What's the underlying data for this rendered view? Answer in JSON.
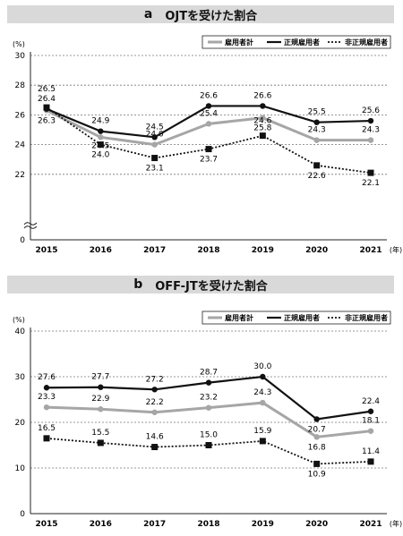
{
  "chart_data": [
    {
      "type": "line",
      "panel_letter": "a",
      "title": "OJTを受けた割合",
      "ylabel": "(%)",
      "xunit": "(年)",
      "ylim": [
        20,
        30
      ],
      "yaxis_break": true,
      "yticks": [
        "0",
        "22",
        "24",
        "26",
        "28",
        "30"
      ],
      "categories": [
        "2015",
        "2016",
        "2017",
        "2018",
        "2019",
        "2020",
        "2021"
      ],
      "legend": "top-right",
      "grid": "horizontal dotted",
      "series": [
        {
          "name": "雇用者計",
          "style": "gray",
          "values": [
            26.3,
            24.5,
            24.0,
            25.4,
            25.8,
            24.3,
            24.3
          ]
        },
        {
          "name": "正規雇用者",
          "style": "black",
          "values": [
            26.4,
            24.9,
            24.5,
            26.6,
            26.6,
            25.5,
            25.6
          ]
        },
        {
          "name": "非正規雇用者",
          "style": "dotted",
          "values": [
            26.5,
            24.0,
            23.1,
            23.7,
            24.6,
            22.6,
            22.1
          ]
        }
      ]
    },
    {
      "type": "line",
      "panel_letter": "b",
      "title": "OFF-JTを受けた割合",
      "ylabel": "(%)",
      "xunit": "(年)",
      "ylim": [
        0,
        40
      ],
      "yaxis_break": false,
      "yticks": [
        "0",
        "10",
        "20",
        "30",
        "40"
      ],
      "categories": [
        "2015",
        "2016",
        "2017",
        "2018",
        "2019",
        "2020",
        "2021"
      ],
      "legend": "top-right",
      "grid": "horizontal dotted",
      "series": [
        {
          "name": "雇用者計",
          "style": "gray",
          "values": [
            23.3,
            22.9,
            22.2,
            23.2,
            24.3,
            16.8,
            18.1
          ]
        },
        {
          "name": "正規雇用者",
          "style": "black",
          "values": [
            27.6,
            27.7,
            27.2,
            28.7,
            30.0,
            20.7,
            22.4
          ]
        },
        {
          "name": "非正規雇用者",
          "style": "dotted",
          "values": [
            16.5,
            15.5,
            14.6,
            15.0,
            15.9,
            10.9,
            11.4
          ]
        }
      ]
    }
  ]
}
